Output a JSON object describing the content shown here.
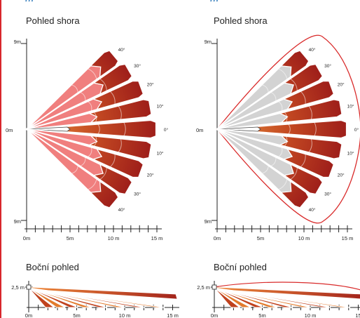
{
  "header_fragment_left": "...",
  "header_fragment_right": "...",
  "panels": {
    "left_top": {
      "title": "Pohled shora",
      "y_top_label": "9m",
      "y_mid_label": "0m",
      "y_bottom_label": "9m",
      "x_labels": [
        "0m",
        "5m",
        "10 m",
        "15 m"
      ],
      "angle_labels": [
        "40°",
        "30°",
        "20°",
        "10°",
        "0°",
        "10°",
        "20°",
        "30°",
        "40°"
      ]
    },
    "right_top": {
      "title": "Pohled shora",
      "y_top_label": "9m",
      "y_mid_label": "0m",
      "y_bottom_label": "9m",
      "x_labels": [
        "0m",
        "5m",
        "10 m",
        "15 m"
      ],
      "angle_labels": [
        "40°",
        "30°",
        "20°",
        "10°",
        "0°",
        "10°",
        "20°",
        "30°",
        "40°"
      ]
    },
    "left_side": {
      "title": "Boční pohled",
      "height_label": "2,5 m",
      "x_labels": [
        "0m",
        "5m",
        "10 m",
        "15 m"
      ]
    },
    "right_side": {
      "title": "Boční pohled",
      "height_label": "2,5 m",
      "x_labels": [
        "0m",
        "5m",
        "10 m",
        "15"
      ]
    }
  },
  "colors": {
    "beam_dark": "#a4241c",
    "beam_orange": "#e07a2e",
    "pink": "#f07f7e",
    "grey": "#d3d3d3",
    "outline": "#d92b2b",
    "accent": "#d8262c"
  }
}
